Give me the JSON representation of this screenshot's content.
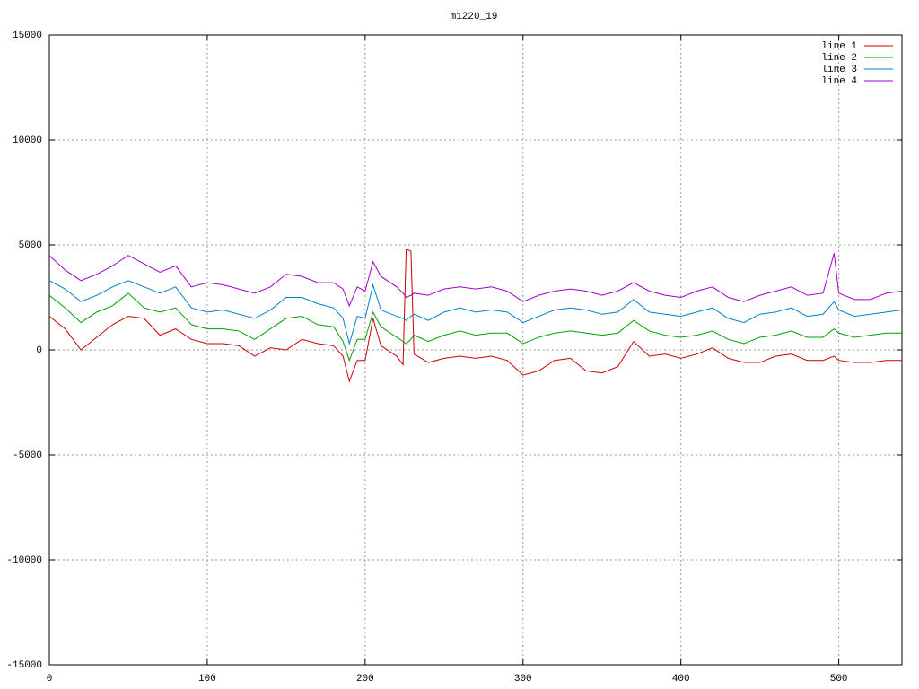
{
  "chart_data": {
    "type": "line",
    "title": "m1220_19",
    "x": [
      0,
      10,
      20,
      30,
      40,
      50,
      60,
      70,
      80,
      90,
      100,
      110,
      120,
      130,
      140,
      150,
      160,
      170,
      180,
      186,
      190,
      195,
      200,
      205,
      210,
      220,
      224,
      226,
      229,
      231,
      240,
      250,
      260,
      270,
      280,
      290,
      300,
      310,
      320,
      330,
      340,
      350,
      360,
      370,
      380,
      390,
      400,
      410,
      420,
      430,
      440,
      450,
      460,
      470,
      480,
      490,
      497,
      500,
      510,
      520,
      530,
      540
    ],
    "series": [
      {
        "name": "line 1",
        "color": "#cc0000",
        "values": [
          1600,
          1000,
          0,
          600,
          1200,
          1600,
          1500,
          700,
          1000,
          500,
          300,
          300,
          200,
          -300,
          100,
          0,
          500,
          300,
          200,
          -300,
          -1500,
          -500,
          -500,
          1500,
          200,
          -300,
          -700,
          4800,
          4700,
          -200,
          -600,
          -400,
          -300,
          -400,
          -300,
          -500,
          -1200,
          -1000,
          -500,
          -400,
          -1000,
          -1100,
          -800,
          400,
          -300,
          -200,
          -400,
          -200,
          100,
          -400,
          -600,
          -600,
          -300,
          -200,
          -500,
          -500,
          -300,
          -500,
          -600,
          -600,
          -500,
          -500
        ]
      },
      {
        "name": "line 2",
        "color": "#00a000",
        "values": [
          2600,
          2000,
          1300,
          1800,
          2100,
          2700,
          2000,
          1800,
          2000,
          1200,
          1000,
          1000,
          900,
          500,
          1000,
          1500,
          1600,
          1200,
          1100,
          400,
          -500,
          500,
          500,
          1800,
          1100,
          600,
          400,
          300,
          500,
          700,
          400,
          700,
          900,
          700,
          800,
          800,
          300,
          600,
          800,
          900,
          800,
          700,
          800,
          1400,
          900,
          700,
          600,
          700,
          900,
          500,
          300,
          600,
          700,
          900,
          600,
          600,
          1000,
          800,
          600,
          700,
          800,
          800
        ]
      },
      {
        "name": "line 3",
        "color": "#0080cc",
        "values": [
          3300,
          2900,
          2300,
          2600,
          3000,
          3300,
          3000,
          2700,
          3000,
          2000,
          1800,
          1900,
          1700,
          1500,
          1900,
          2500,
          2500,
          2200,
          2000,
          1500,
          300,
          1600,
          1500,
          3100,
          1900,
          1600,
          1500,
          1400,
          1600,
          1700,
          1400,
          1800,
          2000,
          1800,
          1900,
          1800,
          1300,
          1600,
          1900,
          2000,
          1900,
          1700,
          1800,
          2400,
          1800,
          1700,
          1600,
          1800,
          2000,
          1500,
          1300,
          1700,
          1800,
          2000,
          1600,
          1700,
          2300,
          1900,
          1600,
          1700,
          1800,
          1900
        ]
      },
      {
        "name": "line 4",
        "color": "#a000cc",
        "values": [
          4500,
          3800,
          3300,
          3600,
          4000,
          4500,
          4100,
          3700,
          4000,
          3000,
          3200,
          3100,
          2900,
          2700,
          3000,
          3600,
          3500,
          3200,
          3200,
          2900,
          2100,
          3000,
          2800,
          4200,
          3500,
          3000,
          2700,
          2500,
          2600,
          2700,
          2600,
          2900,
          3000,
          2900,
          3000,
          2800,
          2300,
          2600,
          2800,
          2900,
          2800,
          2600,
          2800,
          3200,
          2800,
          2600,
          2500,
          2800,
          3000,
          2500,
          2300,
          2600,
          2800,
          3000,
          2600,
          2700,
          4600,
          2700,
          2400,
          2400,
          2700,
          2800
        ]
      }
    ],
    "xlim": [
      0,
      540
    ],
    "xticks": [
      0,
      100,
      200,
      300,
      400,
      500
    ],
    "ylim": [
      -15000,
      15000
    ],
    "yticks": [
      -15000,
      -10000,
      -5000,
      0,
      5000,
      10000,
      15000
    ],
    "grid": true,
    "legend": "upper right"
  }
}
